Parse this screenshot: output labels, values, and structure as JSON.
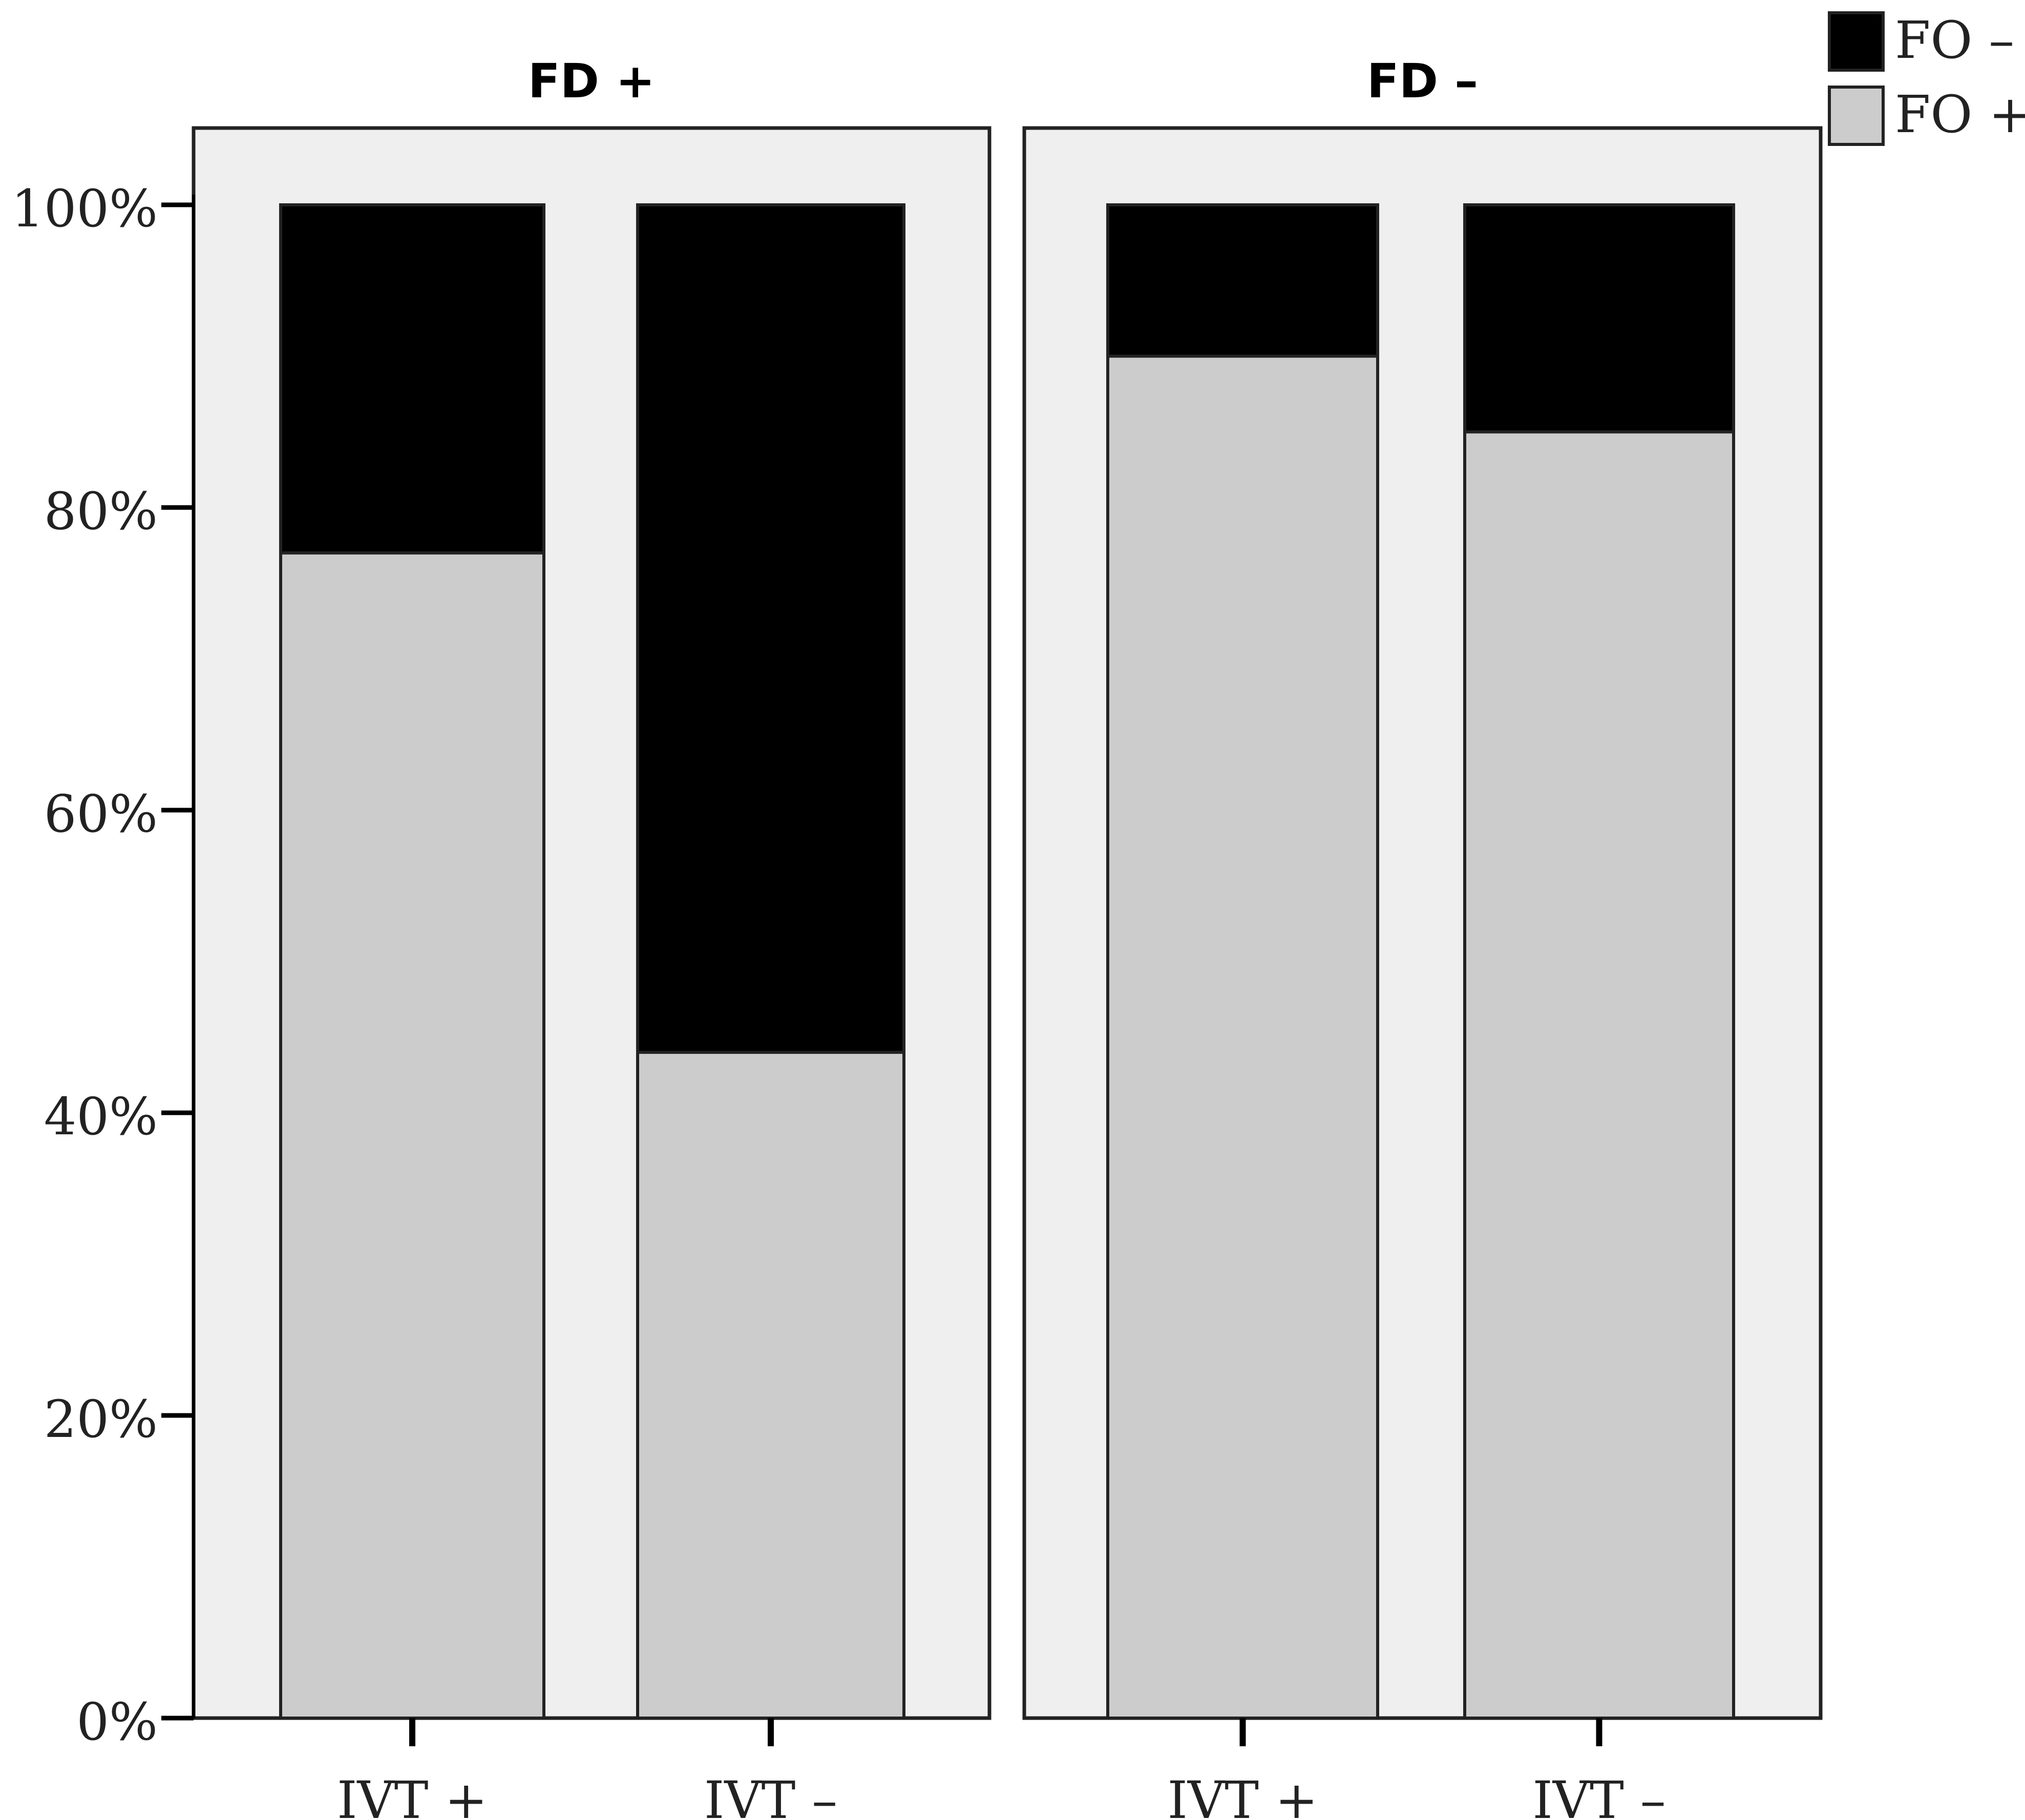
{
  "chart_data": {
    "type": "bar",
    "stacked": true,
    "percent": true,
    "facets": [
      {
        "title": "FD +",
        "categories": [
          "IVT +",
          "IVT –"
        ],
        "series": [
          {
            "name": "FO +",
            "values": [
              77,
              44
            ]
          },
          {
            "name": "FO –",
            "values": [
              23,
              56
            ]
          }
        ]
      },
      {
        "title": "FD –",
        "categories": [
          "IVT +",
          "IVT –"
        ],
        "series": [
          {
            "name": "FO +",
            "values": [
              90,
              85
            ]
          },
          {
            "name": "FO –",
            "values": [
              10,
              15
            ]
          }
        ]
      }
    ],
    "yticks": [
      "0%",
      "20%",
      "40%",
      "60%",
      "80%",
      "100%"
    ],
    "ylim": [
      0,
      100
    ],
    "legend": {
      "position": "top-right",
      "entries": [
        {
          "name": "FO –",
          "color": "#000000"
        },
        {
          "name": "FO +",
          "color": "#cccccc"
        }
      ]
    },
    "colors": {
      "FO +": "#cccccc",
      "FO –": "#000000",
      "panel_background": "#efefef"
    },
    "grid": false
  }
}
